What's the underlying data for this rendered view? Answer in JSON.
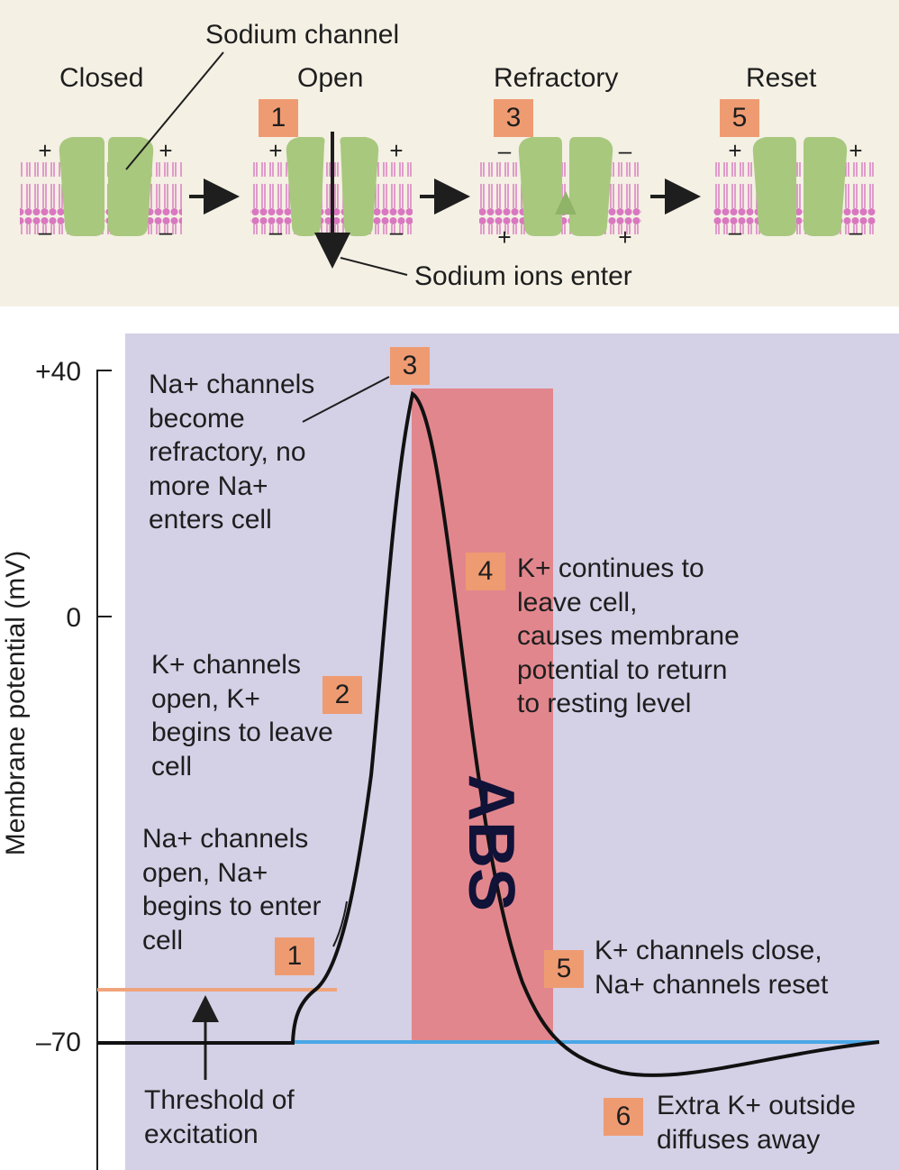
{
  "channel_panel": {
    "caption_sodium_channel": "Sodium channel",
    "caption_sodium_ions_enter": "Sodium ions enter",
    "states": [
      {
        "label": "Closed",
        "step": "",
        "signs_top": [
          "+",
          "+"
        ],
        "signs_bottom": [
          "–",
          "–"
        ]
      },
      {
        "label": "Open",
        "step": "1",
        "signs_top": [
          "+",
          "+"
        ],
        "signs_bottom": [
          "–",
          "–"
        ]
      },
      {
        "label": "Refractory",
        "step": "3",
        "signs_top": [
          "–",
          "–"
        ],
        "signs_bottom": [
          "+",
          "+"
        ]
      },
      {
        "label": "Reset",
        "step": "5",
        "signs_top": [
          "+",
          "+"
        ],
        "signs_bottom": [
          "–",
          "–"
        ]
      }
    ]
  },
  "chart": {
    "ylabel": "Membrane potential (mV)",
    "yticks": [
      "+40",
      "0",
      "–70"
    ],
    "abs_label": "ABS",
    "threshold_label": "Threshold of\nexcitation",
    "annotations": [
      {
        "step": "1",
        "text": "Na+ channels\nopen, Na+\nbegins to enter\ncell"
      },
      {
        "step": "2",
        "text": "K+ channels\nopen, K+\nbegins to leave\ncell"
      },
      {
        "step": "3",
        "text": "Na+ channels\nbecome\nrefractory, no\nmore Na+\nenters cell"
      },
      {
        "step": "4",
        "text": "K+ continues to\nleave cell,\ncauses membrane\npotential to return\nto resting level"
      },
      {
        "step": "5",
        "text": "K+ channels close,\nNa+ channels reset"
      },
      {
        "step": "6",
        "text": "Extra K+ outside\ndiffuses away"
      }
    ]
  },
  "colors": {
    "panel_bg": "#f4f0e4",
    "plot_bg": "#d4d0e6",
    "badge": "#ef9b72",
    "abs_band": "#e2868d",
    "channel_protein": "#a8c87e",
    "membrane": "#d977c0",
    "resting_line": "#4aa7e6",
    "threshold_line": "#f0a47c",
    "abs_text": "#101238"
  }
}
